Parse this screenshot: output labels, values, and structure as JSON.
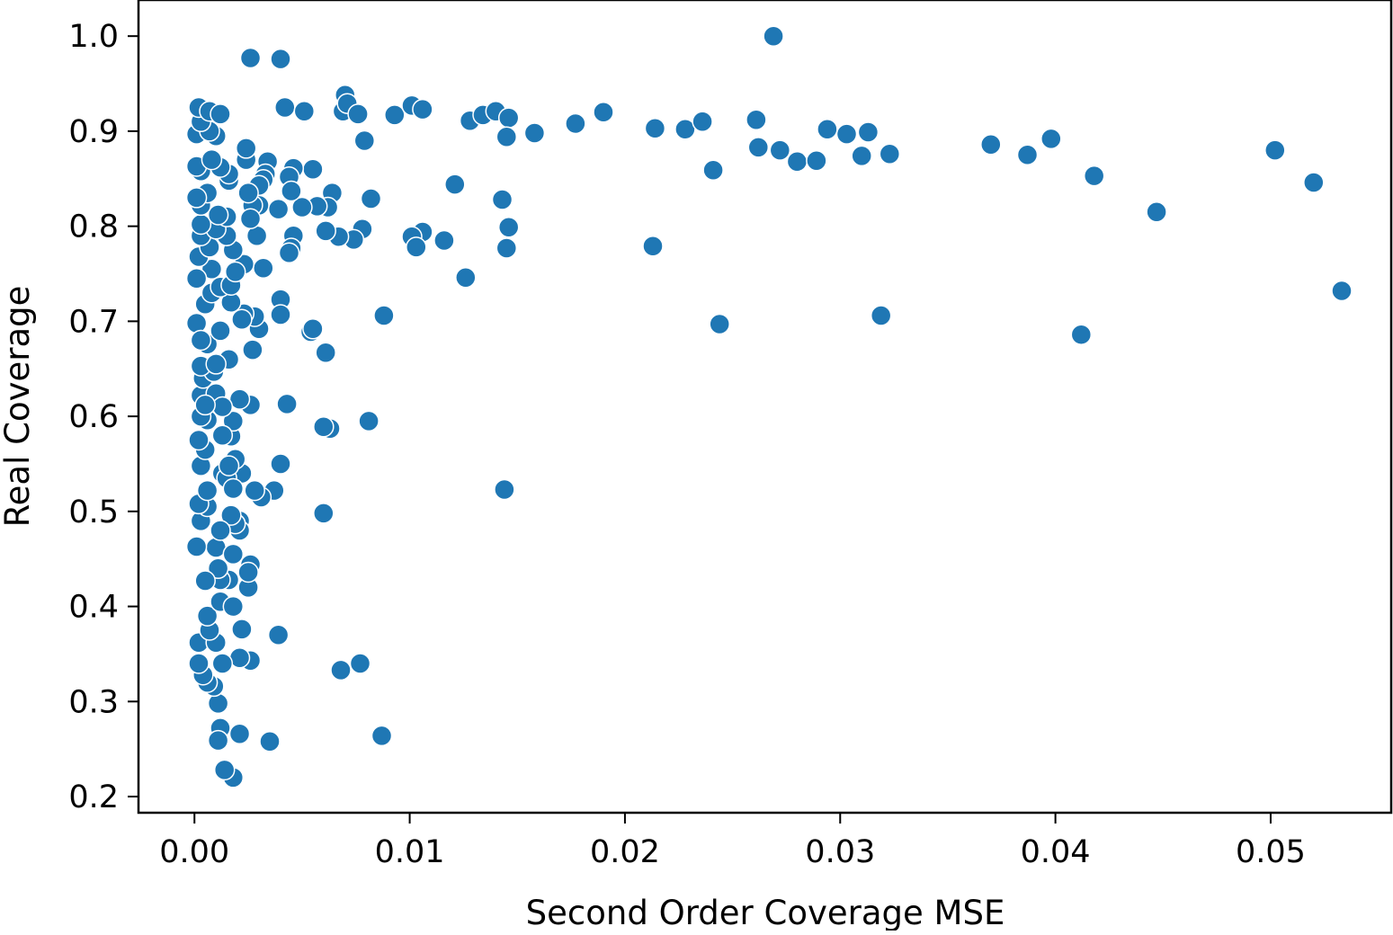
{
  "chart_data": {
    "type": "scatter",
    "title": "",
    "xlabel": "Second Order Coverage MSE",
    "ylabel": "Real Coverage",
    "xlim": [
      -0.0026,
      0.0556
    ],
    "ylim": [
      0.183,
      1.038
    ],
    "x_ticks": [
      0.0,
      0.01,
      0.02,
      0.03,
      0.04,
      0.05
    ],
    "x_tick_labels": [
      "0.00",
      "0.01",
      "0.02",
      "0.03",
      "0.04",
      "0.05"
    ],
    "y_ticks": [
      0.2,
      0.3,
      0.4,
      0.5,
      0.6,
      0.7,
      0.8,
      0.9,
      1.0
    ],
    "y_tick_labels": [
      "0.2",
      "0.3",
      "0.4",
      "0.5",
      "0.6",
      "0.7",
      "0.8",
      "0.9",
      "1.0"
    ],
    "grid": false,
    "legend": "none",
    "colors": {
      "marker": "#1f77b4",
      "marker_edge": "#ffffff"
    },
    "points": [
      [
        0.0269,
        1.0
      ],
      [
        0.0026,
        0.977
      ],
      [
        0.004,
        0.976
      ],
      [
        0.0042,
        0.925
      ],
      [
        0.0051,
        0.921
      ],
      [
        0.0069,
        0.921
      ],
      [
        0.007,
        0.938
      ],
      [
        0.0071,
        0.929
      ],
      [
        0.0076,
        0.918
      ],
      [
        0.0093,
        0.917
      ],
      [
        0.0101,
        0.927
      ],
      [
        0.0106,
        0.923
      ],
      [
        0.0128,
        0.911
      ],
      [
        0.0134,
        0.917
      ],
      [
        0.014,
        0.921
      ],
      [
        0.0146,
        0.914
      ],
      [
        0.0145,
        0.894
      ],
      [
        0.0158,
        0.898
      ],
      [
        0.0177,
        0.908
      ],
      [
        0.019,
        0.92
      ],
      [
        0.0214,
        0.903
      ],
      [
        0.0228,
        0.902
      ],
      [
        0.0236,
        0.91
      ],
      [
        0.0261,
        0.912
      ],
      [
        0.0262,
        0.883
      ],
      [
        0.0272,
        0.88
      ],
      [
        0.0241,
        0.859
      ],
      [
        0.028,
        0.868
      ],
      [
        0.0289,
        0.869
      ],
      [
        0.0294,
        0.902
      ],
      [
        0.0303,
        0.897
      ],
      [
        0.031,
        0.874
      ],
      [
        0.0313,
        0.899
      ],
      [
        0.0323,
        0.876
      ],
      [
        0.037,
        0.886
      ],
      [
        0.0387,
        0.875
      ],
      [
        0.0398,
        0.892
      ],
      [
        0.0418,
        0.853
      ],
      [
        0.0447,
        0.815
      ],
      [
        0.0502,
        0.88
      ],
      [
        0.052,
        0.846
      ],
      [
        0.0533,
        0.732
      ],
      [
        0.0412,
        0.686
      ],
      [
        0.0319,
        0.706
      ],
      [
        0.0244,
        0.697
      ],
      [
        0.0213,
        0.779
      ],
      [
        0.0144,
        0.523
      ],
      [
        0.0143,
        0.828
      ],
      [
        0.0146,
        0.799
      ],
      [
        0.0145,
        0.777
      ],
      [
        0.0121,
        0.844
      ],
      [
        0.0126,
        0.746
      ],
      [
        0.0116,
        0.785
      ],
      [
        0.0106,
        0.794
      ],
      [
        0.0101,
        0.789
      ],
      [
        0.0103,
        0.778
      ],
      [
        0.0088,
        0.706
      ],
      [
        0.0087,
        0.264
      ],
      [
        0.0081,
        0.595
      ],
      [
        0.0082,
        0.829
      ],
      [
        0.0079,
        0.89
      ],
      [
        0.0078,
        0.797
      ],
      [
        0.0074,
        0.786
      ],
      [
        0.0067,
        0.789
      ],
      [
        0.0064,
        0.835
      ],
      [
        0.0062,
        0.82
      ],
      [
        0.0061,
        0.795
      ],
      [
        0.0061,
        0.667
      ],
      [
        0.0063,
        0.587
      ],
      [
        0.006,
        0.589
      ],
      [
        0.006,
        0.498
      ],
      [
        0.0077,
        0.34
      ],
      [
        0.0068,
        0.333
      ],
      [
        0.0055,
        0.86
      ],
      [
        0.0057,
        0.821
      ],
      [
        0.005,
        0.82
      ],
      [
        0.0046,
        0.861
      ],
      [
        0.0044,
        0.852
      ],
      [
        0.0045,
        0.837
      ],
      [
        0.0046,
        0.79
      ],
      [
        0.0045,
        0.777
      ],
      [
        0.0044,
        0.772
      ],
      [
        0.0054,
        0.689
      ],
      [
        0.0055,
        0.692
      ],
      [
        0.0043,
        0.613
      ],
      [
        0.004,
        0.723
      ],
      [
        0.004,
        0.707
      ],
      [
        0.0039,
        0.818
      ],
      [
        0.004,
        0.55
      ],
      [
        0.0039,
        0.37
      ],
      [
        0.0037,
        0.522
      ],
      [
        0.0035,
        0.258
      ],
      [
        0.0034,
        0.868
      ],
      [
        0.0033,
        0.855
      ],
      [
        0.0032,
        0.849
      ],
      [
        0.003,
        0.843
      ],
      [
        0.003,
        0.822
      ],
      [
        0.0029,
        0.79
      ],
      [
        0.0032,
        0.756
      ],
      [
        0.003,
        0.692
      ],
      [
        0.0028,
        0.705
      ],
      [
        0.0027,
        0.67
      ],
      [
        0.0026,
        0.612
      ],
      [
        0.0031,
        0.515
      ],
      [
        0.0028,
        0.522
      ],
      [
        0.0026,
        0.444
      ],
      [
        0.0025,
        0.42
      ],
      [
        0.0025,
        0.436
      ],
      [
        0.0026,
        0.343
      ],
      [
        0.0027,
        0.822
      ],
      [
        0.0026,
        0.808
      ],
      [
        0.0025,
        0.835
      ],
      [
        0.0024,
        0.87
      ],
      [
        0.0024,
        0.882
      ],
      [
        0.0023,
        0.76
      ],
      [
        0.0023,
        0.708
      ],
      [
        0.0022,
        0.702
      ],
      [
        0.0021,
        0.618
      ],
      [
        0.0022,
        0.54
      ],
      [
        0.0021,
        0.49
      ],
      [
        0.0021,
        0.48
      ],
      [
        0.0022,
        0.376
      ],
      [
        0.0021,
        0.346
      ],
      [
        0.0021,
        0.266
      ],
      [
        0.0018,
        0.22
      ],
      [
        0.0014,
        0.228
      ],
      [
        0.0012,
        0.272
      ],
      [
        0.0011,
        0.259
      ],
      [
        0.0011,
        0.298
      ],
      [
        0.0009,
        0.316
      ],
      [
        0.0006,
        0.32
      ],
      [
        0.0004,
        0.328
      ],
      [
        0.0002,
        0.34
      ],
      [
        0.0002,
        0.362
      ],
      [
        0.001,
        0.362
      ],
      [
        0.0013,
        0.34
      ],
      [
        0.0007,
        0.375
      ],
      [
        0.0006,
        0.39
      ],
      [
        0.0012,
        0.405
      ],
      [
        0.0018,
        0.4
      ],
      [
        0.0016,
        0.428
      ],
      [
        0.0012,
        0.428
      ],
      [
        0.0011,
        0.44
      ],
      [
        0.0005,
        0.427
      ],
      [
        0.001,
        0.462
      ],
      [
        0.0001,
        0.463
      ],
      [
        0.0018,
        0.455
      ],
      [
        0.0019,
        0.487
      ],
      [
        0.0017,
        0.496
      ],
      [
        0.0012,
        0.48
      ],
      [
        0.0003,
        0.49
      ],
      [
        0.0006,
        0.505
      ],
      [
        0.0002,
        0.508
      ],
      [
        0.0006,
        0.522
      ],
      [
        0.0013,
        0.54
      ],
      [
        0.0015,
        0.535
      ],
      [
        0.0018,
        0.524
      ],
      [
        0.0019,
        0.555
      ],
      [
        0.0016,
        0.548
      ],
      [
        0.0003,
        0.548
      ],
      [
        0.0005,
        0.565
      ],
      [
        0.0017,
        0.579
      ],
      [
        0.0018,
        0.595
      ],
      [
        0.0006,
        0.596
      ],
      [
        0.0003,
        0.6
      ],
      [
        0.0003,
        0.622
      ],
      [
        0.001,
        0.624
      ],
      [
        0.0004,
        0.64
      ],
      [
        0.0009,
        0.647
      ],
      [
        0.0016,
        0.66
      ],
      [
        0.0003,
        0.653
      ],
      [
        0.001,
        0.655
      ],
      [
        0.0006,
        0.676
      ],
      [
        0.0012,
        0.69
      ],
      [
        0.0001,
        0.698
      ],
      [
        0.0017,
        0.72
      ],
      [
        0.0005,
        0.718
      ],
      [
        0.0008,
        0.73
      ],
      [
        0.0012,
        0.736
      ],
      [
        0.0017,
        0.738
      ],
      [
        0.0019,
        0.752
      ],
      [
        0.0008,
        0.755
      ],
      [
        0.0002,
        0.768
      ],
      [
        0.0007,
        0.778
      ],
      [
        0.0018,
        0.775
      ],
      [
        0.0015,
        0.79
      ],
      [
        0.0003,
        0.79
      ],
      [
        0.001,
        0.797
      ],
      [
        0.0003,
        0.802
      ],
      [
        0.0015,
        0.81
      ],
      [
        0.0011,
        0.812
      ],
      [
        0.0003,
        0.822
      ],
      [
        0.0006,
        0.835
      ],
      [
        0.0001,
        0.83
      ],
      [
        0.0016,
        0.848
      ],
      [
        0.0016,
        0.855
      ],
      [
        0.0003,
        0.858
      ],
      [
        0.0012,
        0.862
      ],
      [
        0.0001,
        0.863
      ],
      [
        0.0008,
        0.87
      ],
      [
        0.0001,
        0.897
      ],
      [
        0.001,
        0.895
      ],
      [
        0.0007,
        0.9
      ],
      [
        0.0003,
        0.91
      ],
      [
        0.0002,
        0.925
      ],
      [
        0.0007,
        0.921
      ],
      [
        0.0012,
        0.918
      ],
      [
        0.0001,
        0.745
      ],
      [
        0.0003,
        0.68
      ],
      [
        0.0002,
        0.575
      ],
      [
        0.0013,
        0.58
      ],
      [
        0.0013,
        0.61
      ],
      [
        0.0005,
        0.612
      ]
    ]
  }
}
